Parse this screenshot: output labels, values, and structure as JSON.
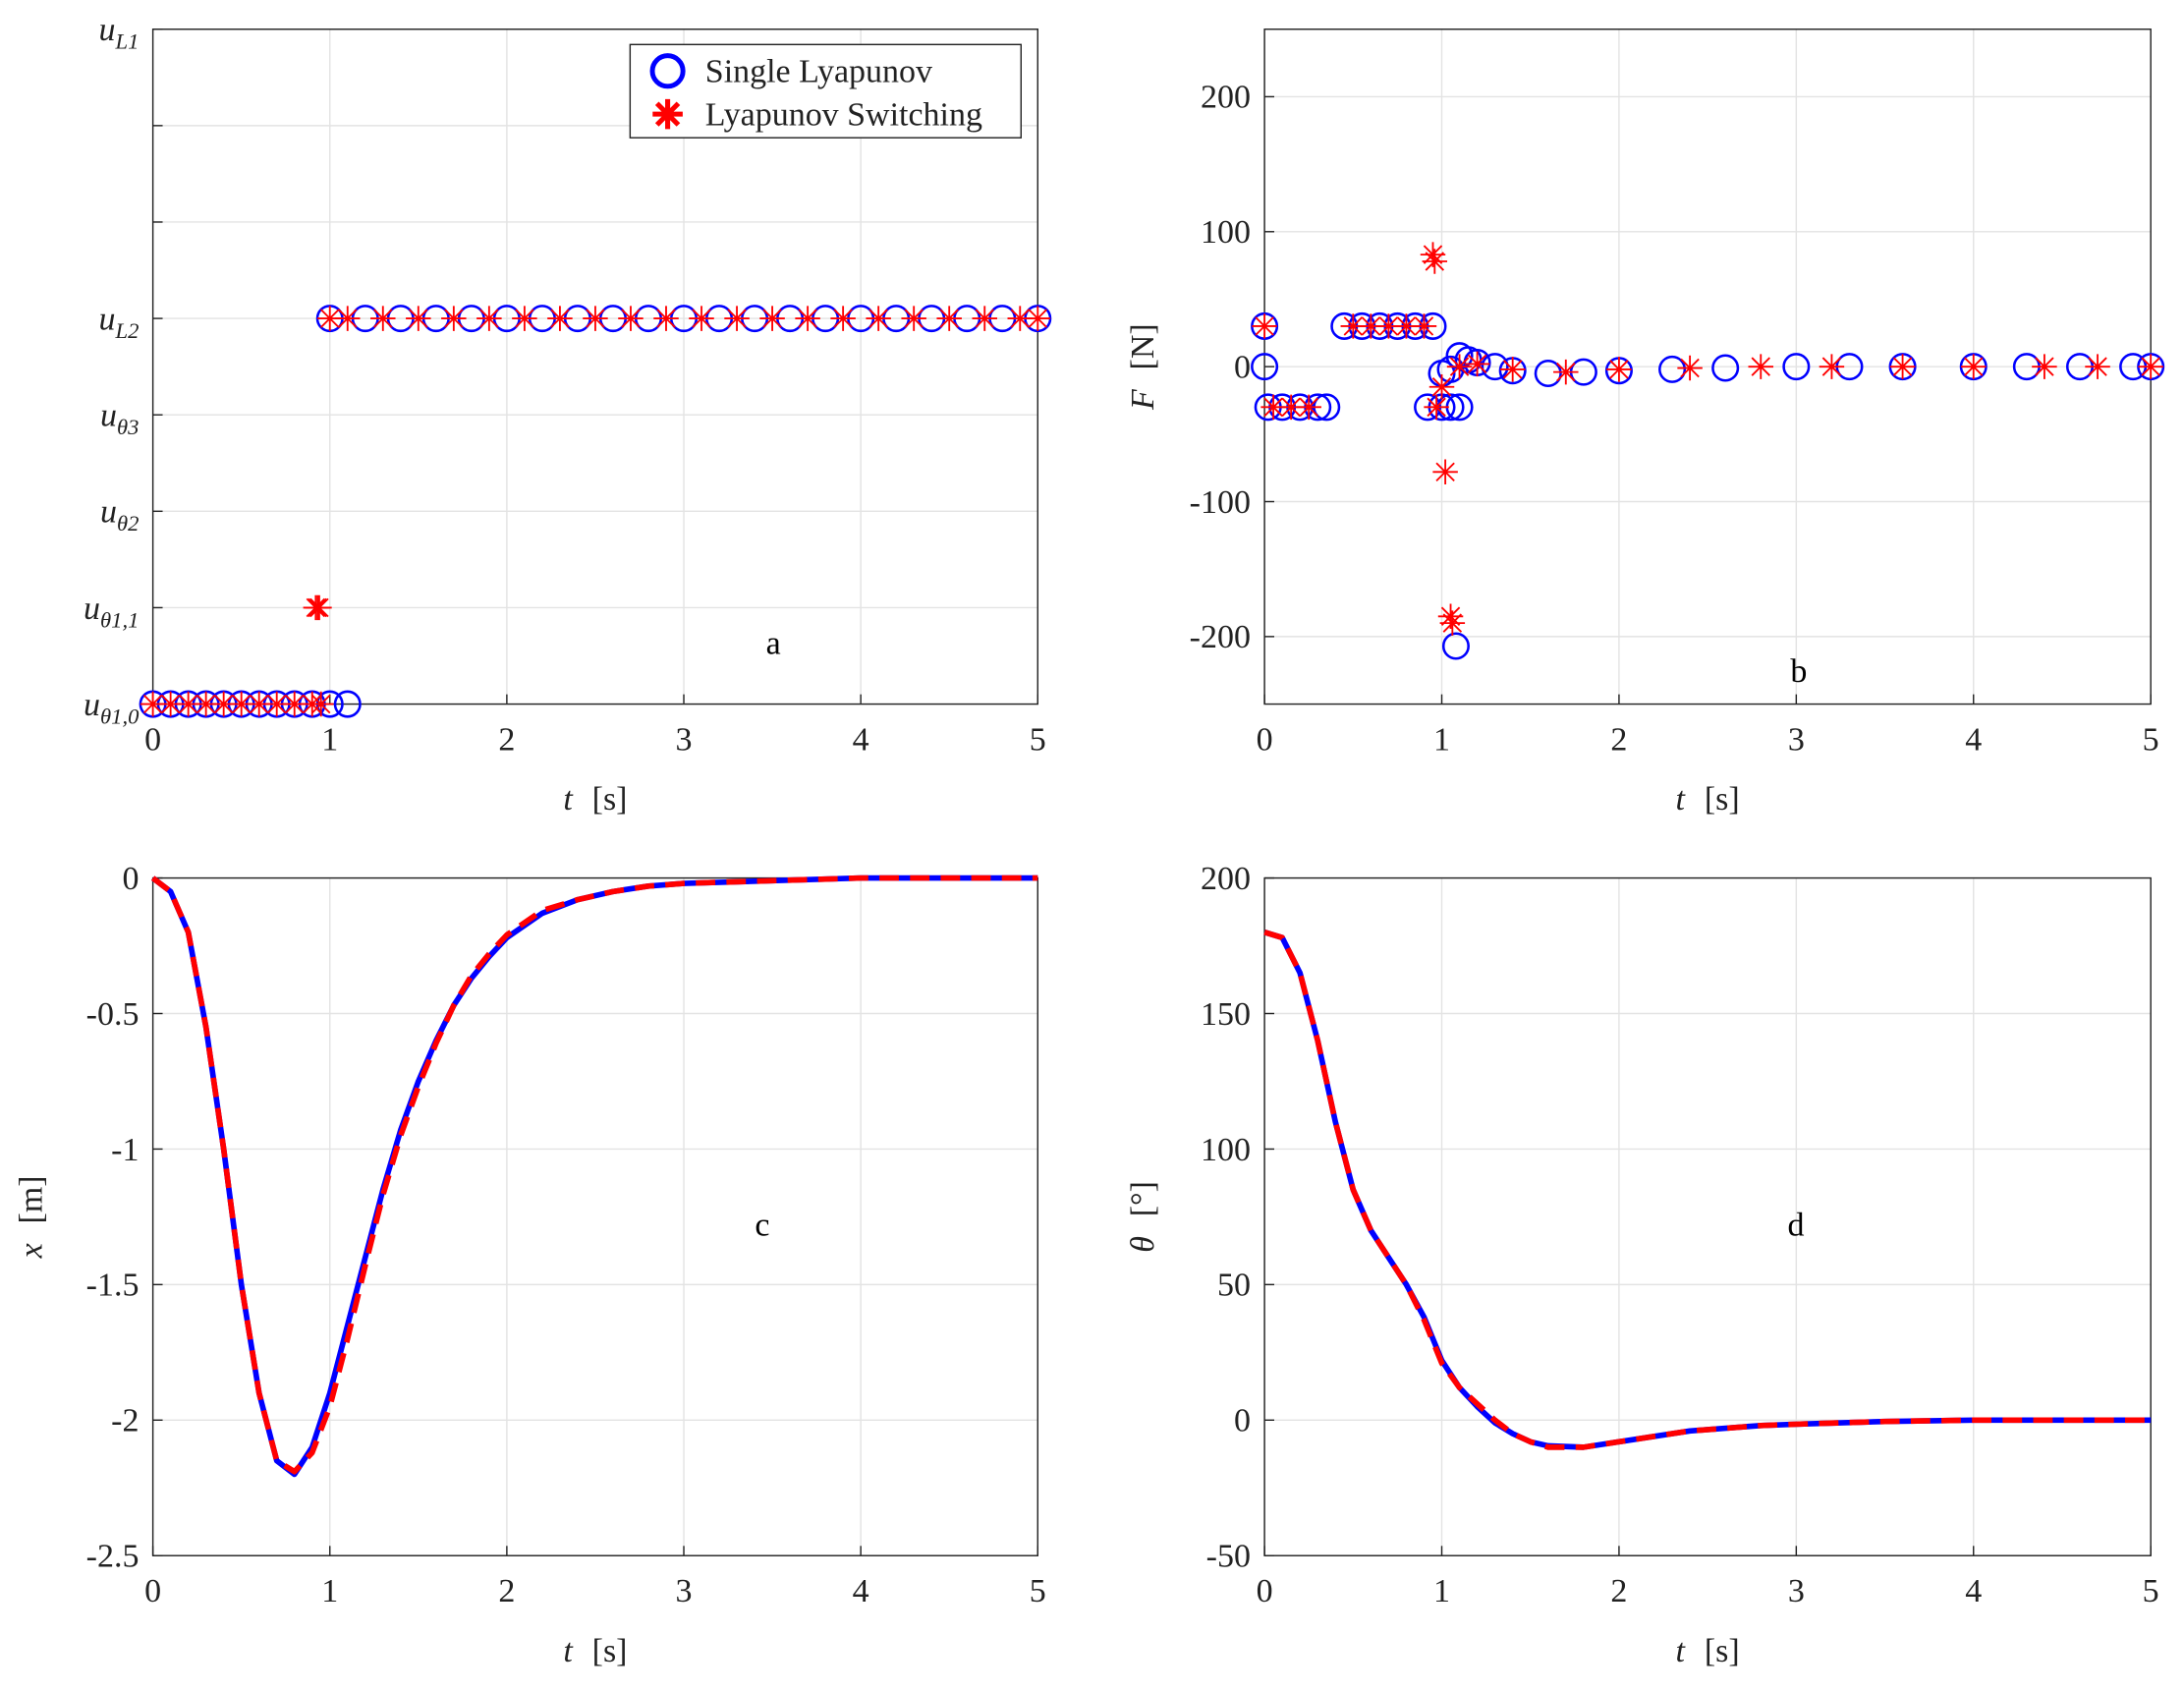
{
  "chart_data": [
    {
      "type": "scatter",
      "annotation": "a",
      "legend": "northeast",
      "grid": true,
      "xlabel": [
        "t",
        "[s]"
      ],
      "xlim": [
        0,
        5
      ],
      "xticks": [
        0,
        1,
        2,
        3,
        4,
        5
      ],
      "ylim": [
        0,
        7
      ],
      "yticks": [
        {
          "value": 0,
          "label": "u",
          "subscript": "θ1,0"
        },
        {
          "value": 1,
          "label": "u",
          "subscript": "θ1,1"
        },
        {
          "value": 2,
          "label": "u",
          "subscript": "θ2"
        },
        {
          "value": 3,
          "label": "u",
          "subscript": "θ3"
        },
        {
          "value": 4,
          "label": "u",
          "subscript": "L2"
        },
        {
          "value": 5,
          "label": null
        },
        {
          "value": 6,
          "label": null
        },
        {
          "value": 7,
          "label": "u",
          "subscript": "L1"
        }
      ],
      "series": [
        {
          "name": "Single Lyapunov",
          "color": "#0000ff",
          "marker": "circle",
          "x": [
            0,
            0.1,
            0.2,
            0.3,
            0.4,
            0.5,
            0.6,
            0.7,
            0.8,
            0.9,
            1.0,
            1.1,
            1.0,
            1.2,
            1.4,
            1.6,
            1.8,
            2.0,
            2.2,
            2.4,
            2.6,
            2.8,
            3.0,
            3.2,
            3.4,
            3.6,
            3.8,
            4.0,
            4.2,
            4.4,
            4.6,
            4.8,
            5.0
          ],
          "values": [
            0,
            0,
            0,
            0,
            0,
            0,
            0,
            0,
            0,
            0,
            0,
            0,
            4,
            4,
            4,
            4,
            4,
            4,
            4,
            4,
            4,
            4,
            4,
            4,
            4,
            4,
            4,
            4,
            4,
            4,
            4,
            4,
            4
          ]
        },
        {
          "name": "Lyapunov Switching",
          "color": "#ff0000",
          "marker": "star",
          "x": [
            0,
            0.1,
            0.2,
            0.3,
            0.4,
            0.5,
            0.6,
            0.7,
            0.8,
            0.9,
            0.92,
            0.93,
            0.94,
            0.95,
            1.0,
            1.1,
            1.3,
            1.5,
            1.7,
            1.9,
            2.1,
            2.3,
            2.5,
            2.7,
            2.9,
            3.1,
            3.3,
            3.5,
            3.7,
            3.9,
            4.1,
            4.3,
            4.5,
            4.7,
            4.9,
            5.0
          ],
          "values": [
            0,
            0,
            0,
            0,
            0,
            0,
            0,
            0,
            0,
            0,
            1,
            1,
            1,
            0,
            4,
            4,
            4,
            4,
            4,
            4,
            4,
            4,
            4,
            4,
            4,
            4,
            4,
            4,
            4,
            4,
            4,
            4,
            4,
            4,
            4,
            4
          ]
        }
      ]
    },
    {
      "type": "scatter",
      "annotation": "b",
      "grid": true,
      "xlabel": [
        "t",
        "[s]"
      ],
      "ylabel": [
        "F",
        "[N]"
      ],
      "xlim": [
        0,
        5
      ],
      "xticks": [
        0,
        1,
        2,
        3,
        4,
        5
      ],
      "ylim": [
        -250,
        250
      ],
      "yticks": [
        -200,
        -100,
        0,
        100,
        200
      ],
      "series": [
        {
          "name": "Single Lyapunov",
          "color": "#0000ff",
          "marker": "circle",
          "x": [
            0,
            0,
            0.02,
            0.1,
            0.2,
            0.3,
            0.35,
            0.45,
            0.55,
            0.65,
            0.75,
            0.85,
            0.95,
            0.92,
            1.0,
            1.05,
            1.08,
            1.1,
            1.0,
            1.05,
            1.1,
            1.15,
            1.2,
            1.3,
            1.4,
            1.6,
            1.8,
            2.0,
            2.3,
            2.6,
            3.0,
            3.3,
            3.6,
            4.0,
            4.3,
            4.6,
            4.9,
            5.0
          ],
          "values": [
            30,
            0,
            -30,
            -30,
            -30,
            -30,
            -30,
            30,
            30,
            30,
            30,
            30,
            30,
            -30,
            -30,
            -30,
            -207,
            -30,
            -5,
            -2,
            8,
            5,
            3,
            0,
            -3,
            -5,
            -4,
            -3,
            -2,
            -1,
            0,
            0,
            0,
            0,
            0,
            0,
            0,
            0
          ]
        },
        {
          "name": "Lyapunov Switching",
          "color": "#ff0000",
          "marker": "star",
          "x": [
            0,
            0.05,
            0.15,
            0.25,
            0.5,
            0.6,
            0.7,
            0.8,
            0.9,
            0.95,
            0.96,
            0.97,
            1.0,
            1.02,
            1.05,
            1.06,
            1.1,
            1.2,
            1.4,
            1.7,
            2.0,
            2.4,
            2.8,
            3.2,
            3.6,
            4.0,
            4.4,
            4.7,
            5.0
          ],
          "values": [
            30,
            -30,
            -30,
            -30,
            30,
            30,
            30,
            30,
            30,
            83,
            78,
            -30,
            -15,
            -78,
            -185,
            -190,
            0,
            2,
            -2,
            -4,
            -2,
            -1,
            0,
            0,
            0,
            0,
            0,
            0,
            0
          ]
        }
      ]
    },
    {
      "type": "line",
      "annotation": "c",
      "grid": true,
      "xlabel": [
        "t",
        "[s]"
      ],
      "ylabel": [
        "x",
        "[m]"
      ],
      "xlim": [
        0,
        5
      ],
      "xticks": [
        0,
        1,
        2,
        3,
        4,
        5
      ],
      "ylim": [
        -2.5,
        0
      ],
      "yticks": [
        -2.5,
        -2,
        -1.5,
        -1,
        -0.5,
        0
      ],
      "x": [
        0,
        0.1,
        0.2,
        0.3,
        0.4,
        0.5,
        0.6,
        0.7,
        0.8,
        0.9,
        1.0,
        1.1,
        1.2,
        1.3,
        1.4,
        1.5,
        1.6,
        1.7,
        1.8,
        1.9,
        2.0,
        2.2,
        2.4,
        2.6,
        2.8,
        3.0,
        3.5,
        4.0,
        4.5,
        5.0
      ],
      "series": [
        {
          "name": "Single Lyapunov",
          "color": "#0000ff",
          "dash": false,
          "values": [
            0,
            -0.05,
            -0.2,
            -0.55,
            -1.0,
            -1.5,
            -1.9,
            -2.15,
            -2.2,
            -2.1,
            -1.9,
            -1.65,
            -1.4,
            -1.15,
            -0.93,
            -0.75,
            -0.6,
            -0.47,
            -0.37,
            -0.29,
            -0.22,
            -0.13,
            -0.08,
            -0.05,
            -0.03,
            -0.02,
            -0.01,
            0,
            0,
            0
          ]
        },
        {
          "name": "Lyapunov Switching",
          "color": "#ff0000",
          "dash": true,
          "values": [
            0,
            -0.05,
            -0.2,
            -0.55,
            -1.0,
            -1.5,
            -1.9,
            -2.15,
            -2.19,
            -2.12,
            -1.95,
            -1.7,
            -1.43,
            -1.17,
            -0.95,
            -0.77,
            -0.61,
            -0.47,
            -0.36,
            -0.28,
            -0.21,
            -0.12,
            -0.08,
            -0.05,
            -0.03,
            -0.02,
            -0.01,
            0,
            0,
            0
          ]
        }
      ]
    },
    {
      "type": "line",
      "annotation": "d",
      "grid": true,
      "xlabel": [
        "t",
        "[s]"
      ],
      "ylabel": [
        "θ",
        "[°]"
      ],
      "xlim": [
        0,
        5
      ],
      "xticks": [
        0,
        1,
        2,
        3,
        4,
        5
      ],
      "ylim": [
        -50,
        200
      ],
      "yticks": [
        -50,
        0,
        50,
        100,
        150,
        200
      ],
      "x": [
        0,
        0.1,
        0.2,
        0.3,
        0.4,
        0.5,
        0.6,
        0.7,
        0.8,
        0.9,
        1.0,
        1.1,
        1.2,
        1.3,
        1.4,
        1.5,
        1.6,
        1.8,
        2.0,
        2.2,
        2.4,
        2.6,
        2.8,
        3.0,
        3.5,
        4.0,
        4.5,
        5.0
      ],
      "series": [
        {
          "name": "Single Lyapunov",
          "color": "#0000ff",
          "dash": false,
          "values": [
            180,
            178,
            165,
            140,
            110,
            85,
            70,
            60,
            50,
            38,
            22,
            12,
            5,
            -1,
            -5,
            -8,
            -9.5,
            -10,
            -8,
            -6,
            -4,
            -3,
            -2,
            -1.5,
            -0.5,
            0,
            0,
            0
          ]
        },
        {
          "name": "Lyapunov Switching",
          "color": "#ff0000",
          "dash": true,
          "values": [
            180,
            178,
            165,
            140,
            110,
            85,
            70,
            60,
            50,
            37,
            21,
            12,
            6,
            0,
            -5,
            -8,
            -10,
            -10,
            -8,
            -6,
            -4,
            -3,
            -2,
            -1.5,
            -0.5,
            0,
            0,
            0
          ]
        }
      ]
    }
  ]
}
